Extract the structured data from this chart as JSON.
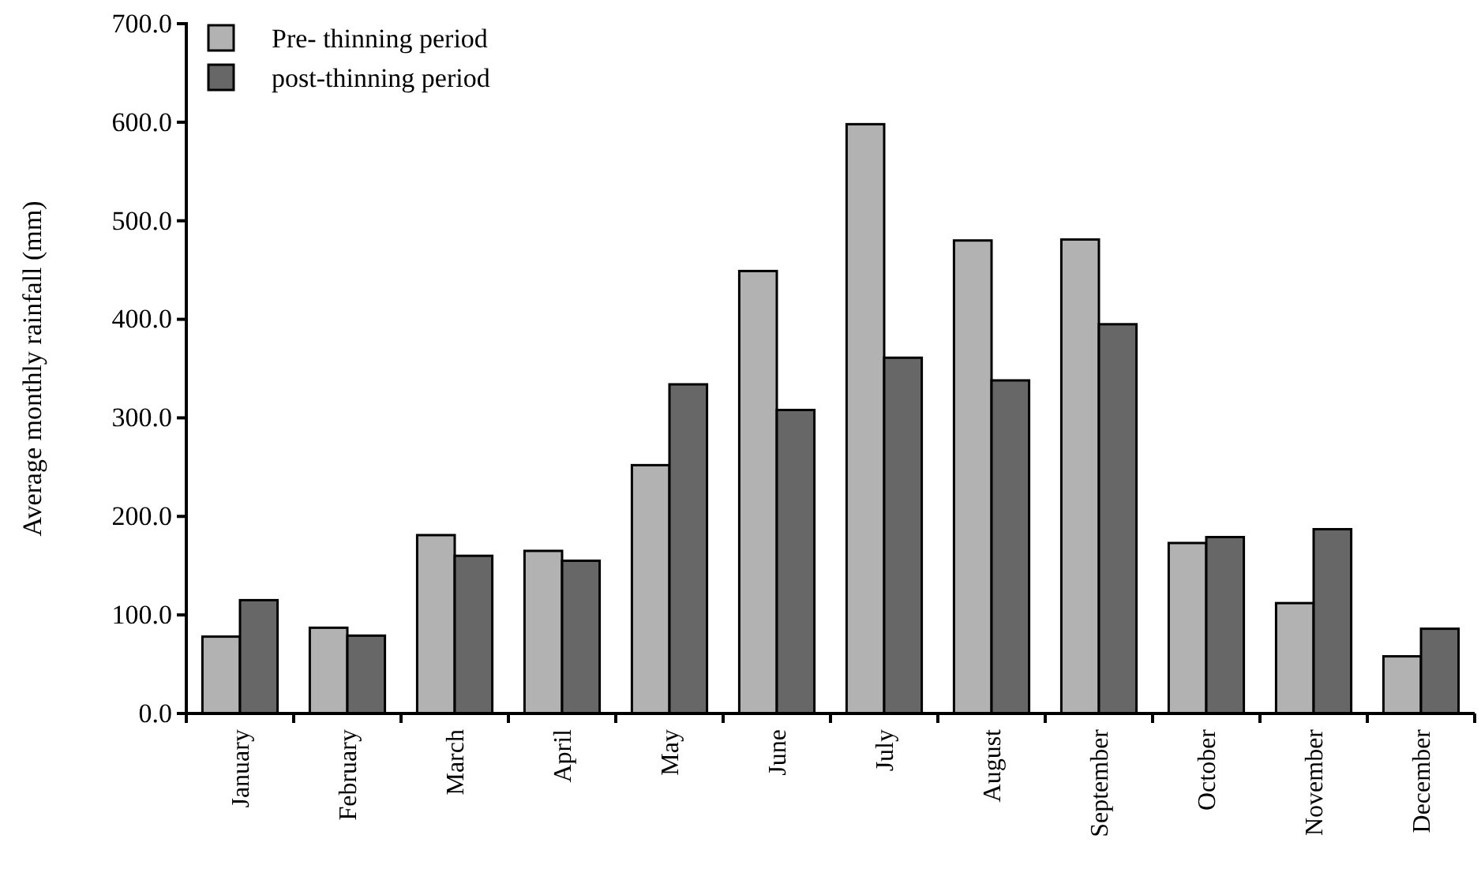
{
  "chart_data": {
    "type": "bar",
    "ylabel": "Average monthly rainfall (mm)",
    "categories": [
      "January",
      "February",
      "March",
      "April",
      "May",
      "June",
      "July",
      "August",
      "September",
      "October",
      "November",
      "December"
    ],
    "series": [
      {
        "name": "Pre- thinning period",
        "color": "#b2b2b2",
        "values": [
          78,
          87,
          181,
          165,
          252,
          449,
          598,
          480,
          481,
          173,
          112,
          58
        ]
      },
      {
        "name": "post-thinning period",
        "color": "#676767",
        "values": [
          115,
          79,
          160,
          155,
          334,
          308,
          361,
          338,
          395,
          179,
          187,
          86
        ]
      }
    ],
    "ylim": [
      0,
      700
    ],
    "yticks": [
      {
        "value": 0,
        "label": "0.0"
      },
      {
        "value": 100,
        "label": "100.0"
      },
      {
        "value": 200,
        "label": "200.0"
      },
      {
        "value": 300,
        "label": "300.0"
      },
      {
        "value": 400,
        "label": "400.0"
      },
      {
        "value": 500,
        "label": "500.0"
      },
      {
        "value": 600,
        "label": "600.0"
      },
      {
        "value": 700,
        "label": "700.0"
      }
    ],
    "legend": "top left",
    "grid": false
  }
}
